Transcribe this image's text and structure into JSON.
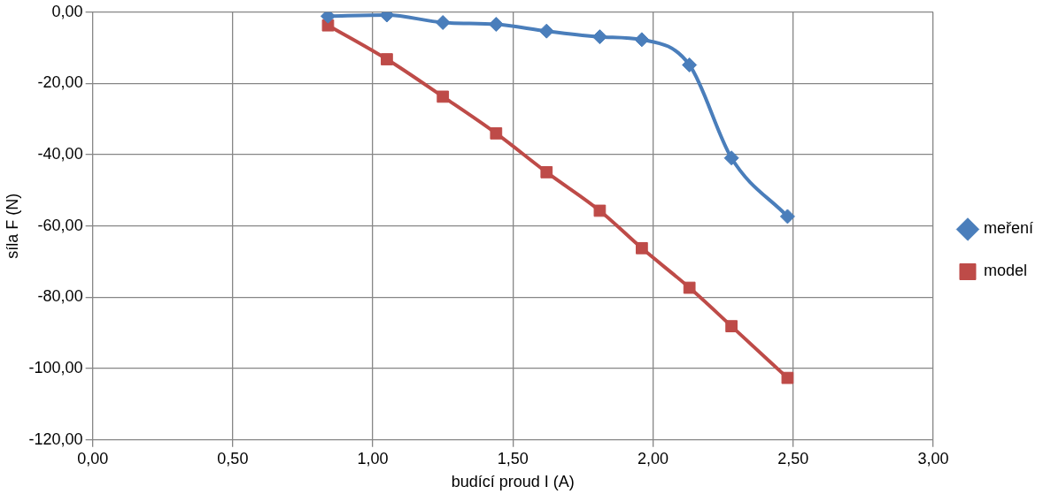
{
  "chart_data": {
    "type": "line",
    "xlabel": "budící proud I (A)",
    "ylabel": "síla F (N)",
    "xlim": [
      0,
      3
    ],
    "ylim": [
      -120,
      0
    ],
    "xticks": [
      {
        "value": 0,
        "label": "0,00"
      },
      {
        "value": 0.5,
        "label": "0,50"
      },
      {
        "value": 1,
        "label": "1,00"
      },
      {
        "value": 1.5,
        "label": "1,50"
      },
      {
        "value": 2,
        "label": "2,00"
      },
      {
        "value": 2.5,
        "label": "2,50"
      },
      {
        "value": 3,
        "label": "3,00"
      }
    ],
    "yticks": [
      {
        "value": -120,
        "label": "-120,00"
      },
      {
        "value": -100,
        "label": "-100,00"
      },
      {
        "value": -80,
        "label": "-80,00"
      },
      {
        "value": -60,
        "label": "-60,00"
      },
      {
        "value": -40,
        "label": "-40,00"
      },
      {
        "value": -20,
        "label": "-20,00"
      },
      {
        "value": 0,
        "label": "0,00"
      }
    ],
    "grid": true,
    "legend": "right",
    "line_style": "solid",
    "series": [
      {
        "name": "meření",
        "color": "#4a7ebb",
        "marker": "diamond",
        "x": [
          0.84,
          1.05,
          1.25,
          1.44,
          1.62,
          1.81,
          1.96,
          2.13,
          2.28,
          2.48
        ],
        "values": [
          -1.1,
          -0.8,
          -2.9,
          -3.4,
          -5.3,
          -6.9,
          -7.7,
          -14.8,
          -40.9,
          -57.3
        ]
      },
      {
        "name": "model",
        "color": "#be4b48",
        "marker": "square",
        "x": [
          0.84,
          1.05,
          1.25,
          1.44,
          1.62,
          1.81,
          1.96,
          2.13,
          2.28,
          2.48
        ],
        "values": [
          -3.7,
          -13.2,
          -23.7,
          -34.0,
          -44.9,
          -55.7,
          -66.2,
          -77.3,
          -88.1,
          -102.6
        ]
      }
    ]
  }
}
